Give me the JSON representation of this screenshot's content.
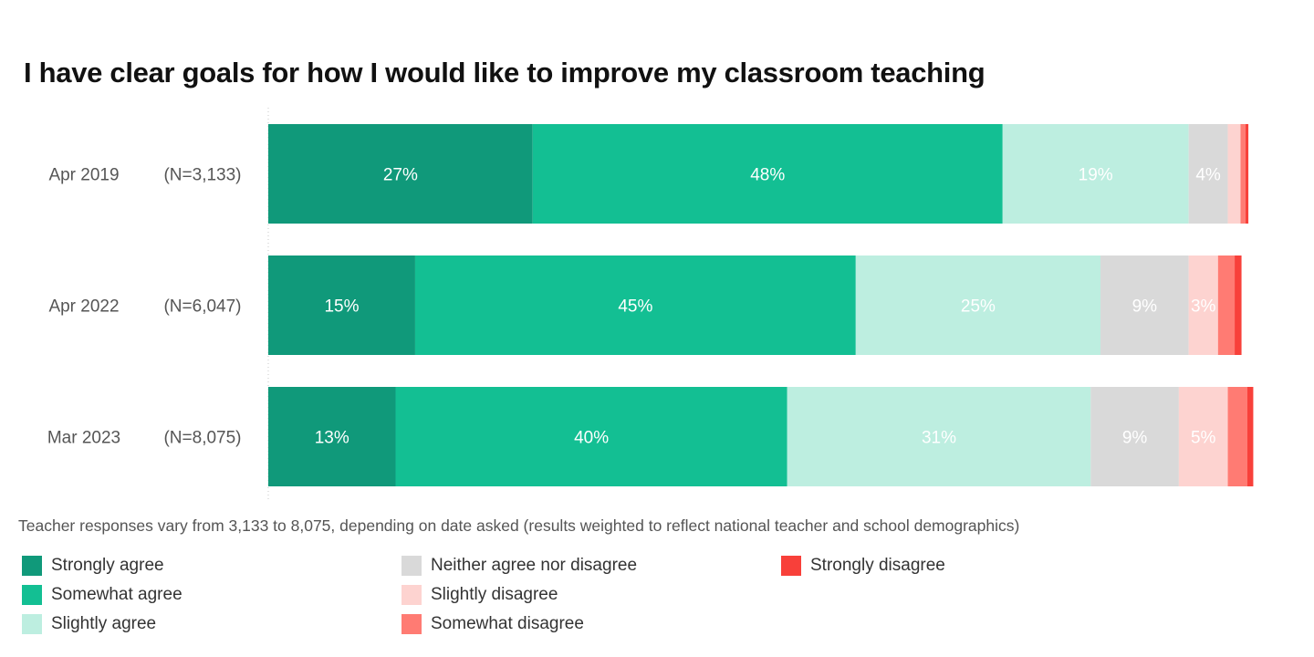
{
  "chart_data": {
    "type": "bar",
    "orientation": "horizontal",
    "stacked": true,
    "title": "I have clear goals for how I would like to improve my classroom teaching",
    "note": "Teacher responses vary from 3,133 to 8,075, depending on date asked (results weighted to reflect national teacher and school demographics)",
    "categories": [
      "Apr 2019",
      "Apr 2022",
      "Mar 2023"
    ],
    "sample_sizes": [
      "(N=3,133)",
      "(N=6,047)",
      "(N=8,075)"
    ],
    "xlim": [
      0,
      100
    ],
    "series": [
      {
        "name": "Strongly agree",
        "color": "#10997a",
        "label_color": "#ffffff",
        "values": [
          27,
          15,
          13
        ],
        "labels": [
          "27%",
          "15%",
          "13%"
        ]
      },
      {
        "name": "Somewhat agree",
        "color": "#13bf93",
        "label_color": "#ffffff",
        "values": [
          48,
          45,
          40
        ],
        "labels": [
          "48%",
          "45%",
          "40%"
        ]
      },
      {
        "name": "Slightly agree",
        "color": "#bdeee0",
        "label_color": "#ffffff",
        "values": [
          19,
          25,
          31
        ],
        "labels": [
          "19%",
          "25%",
          "31%"
        ]
      },
      {
        "name": "Neither agree nor disagree",
        "color": "#d9d9d9",
        "label_color": "#ffffff",
        "values": [
          4,
          9,
          9
        ],
        "labels": [
          "4%",
          "9%",
          "9%"
        ]
      },
      {
        "name": "Slightly disagree",
        "color": "#fdd3d0",
        "label_color": "#ffffff",
        "values": [
          1.3,
          3,
          5
        ],
        "labels": [
          "",
          "3%",
          "5%"
        ]
      },
      {
        "name": "Somewhat disagree",
        "color": "#ff7b73",
        "label_color": "#ffffff",
        "values": [
          0.5,
          1.7,
          2
        ],
        "labels": [
          "",
          "",
          ""
        ]
      },
      {
        "name": "Strongly disagree",
        "color": "#f8403a",
        "label_color": "#ffffff",
        "values": [
          0.3,
          0.7,
          0.6
        ],
        "labels": [
          "",
          "",
          ""
        ]
      }
    ],
    "legend_position": "bottom-left",
    "grid": false
  }
}
